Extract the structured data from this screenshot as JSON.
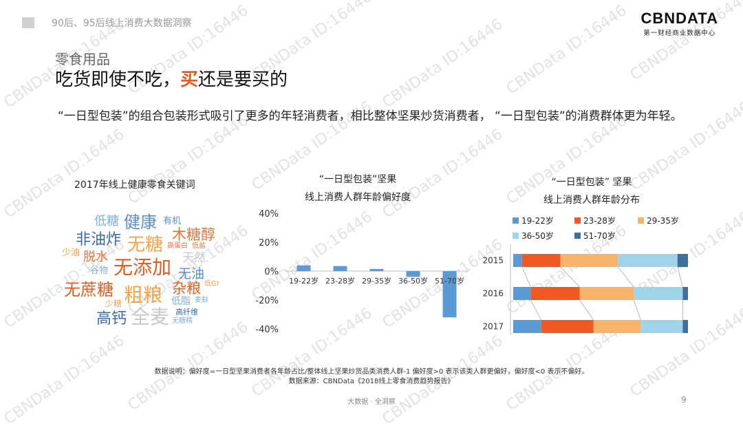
{
  "header": {
    "title": "90后、95后线上消费大数据洞察"
  },
  "logo": {
    "main": "CBNDATA",
    "sub": "第一财经商业数据中心"
  },
  "slide": {
    "subtitle": "零食用品",
    "headline_pre": "吃货即使不吃，",
    "headline_highlight": "买",
    "headline_post": "还是要买的",
    "description": "“一日型包装”的组合包装形式吸引了更多的年轻消费者，相比整体坚果炒货消费者，  “一日型包装”的消费群体更为年轻。"
  },
  "wordcloud": {
    "title": "2017年线上健康零食关键词",
    "words": [
      {
        "text": "低糖",
        "color": "#7fb0d6"
      },
      {
        "text": "健康",
        "color": "#5b8ec3"
      },
      {
        "text": "有机",
        "color": "#5b8ec3"
      },
      {
        "text": "非油炸",
        "color": "#3e6aa8"
      },
      {
        "text": "木糖醇",
        "color": "#e8743b"
      },
      {
        "text": "无糖",
        "color": "#f3a34a"
      },
      {
        "text": "高蛋白",
        "color": "#e8743b"
      },
      {
        "text": "低盐",
        "color": "#e8743b"
      },
      {
        "text": "少油",
        "color": "#f3a34a"
      },
      {
        "text": "脱水",
        "color": "#e8743b"
      },
      {
        "text": "天然",
        "color": "#c8c8c8"
      },
      {
        "text": "谷物",
        "color": "#7fb0d6"
      },
      {
        "text": "无添加",
        "color": "#e85a1f"
      },
      {
        "text": "无油",
        "color": "#5b8ec3"
      },
      {
        "text": "杂粮",
        "color": "#e85a1f"
      },
      {
        "text": "低GI",
        "color": "#f3a34a"
      },
      {
        "text": "无蔗糖",
        "color": "#e85a1f"
      },
      {
        "text": "粗粮",
        "color": "#f3a34a"
      },
      {
        "text": "低脂",
        "color": "#7fb0d6"
      },
      {
        "text": "麦麸",
        "color": "#7fb0d6"
      },
      {
        "text": "少糖",
        "color": "#f3a34a"
      },
      {
        "text": "高纤维",
        "color": "#3e6aa8"
      },
      {
        "text": "高钙",
        "color": "#3e6aa8"
      },
      {
        "text": "全麦",
        "color": "#c8c8c8"
      },
      {
        "text": "无糖精",
        "color": "#7fb0d6"
      }
    ]
  },
  "chart_data": [
    {
      "type": "bar",
      "title": "“一日型包装”坚果\n线上消费人群年龄偏好度",
      "categories": [
        "19-22岁",
        "23-28岁",
        "29-35岁",
        "36-50岁",
        "51-70岁"
      ],
      "values": [
        4,
        3.5,
        1.5,
        -4,
        -32
      ],
      "ylim": [
        -40,
        40
      ],
      "yticks": [
        "40%",
        "20%",
        "0%",
        "-20%",
        "-40%"
      ],
      "color": "#5b9bd5"
    },
    {
      "type": "bar",
      "stacked": "horizontal-100%",
      "title": "“一日型包装” 坚果\n线上消费人群年龄分布",
      "categories": [
        "2015",
        "2016",
        "2017"
      ],
      "series": [
        {
          "name": "19-22岁",
          "color": "#5b9bd5",
          "values": [
            5,
            10,
            16
          ]
        },
        {
          "name": "23-28岁",
          "color": "#f05a22",
          "values": [
            22,
            28,
            30
          ]
        },
        {
          "name": "29-35岁",
          "color": "#f9b46b",
          "values": [
            33,
            31,
            27
          ]
        },
        {
          "name": "36-50岁",
          "color": "#9fd4eb",
          "values": [
            34,
            28,
            24
          ]
        },
        {
          "name": "51-70岁",
          "color": "#3f6f9f",
          "values": [
            6,
            3,
            3
          ]
        }
      ]
    }
  ],
  "notes": {
    "line1": "数据说明：偏好度=一日型坚果消费者各年龄占比/整体线上坚果炒货品类消费人群-1 偏好度>0 表示该类人群更偏好，偏好度<0 表示不偏好。",
    "line2": "数据来源：CBNData《2018线上零食消费趋势报告》"
  },
  "footer": {
    "text": "大数据 · 全洞察",
    "page": "9"
  },
  "watermark": "CBNData ID:16446"
}
